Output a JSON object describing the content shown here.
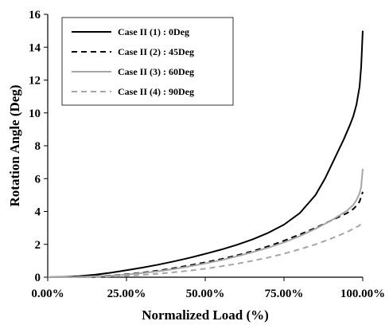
{
  "chart_data": {
    "type": "line",
    "xlabel": "Normalized Load (%)",
    "ylabel": "Rotation Angle (Deg)",
    "xlim": [
      0,
      100
    ],
    "ylim": [
      0,
      16
    ],
    "x_ticks": [
      0,
      25,
      50,
      75,
      100
    ],
    "x_tick_labels": [
      "0.00%",
      "25.00%",
      "50.00%",
      "75.00%",
      "100.00%"
    ],
    "y_ticks": [
      0,
      2,
      4,
      6,
      8,
      10,
      12,
      14,
      16
    ],
    "y_tick_labels": [
      "0",
      "2",
      "4",
      "6",
      "8",
      "10",
      "12",
      "14",
      "16"
    ],
    "grid": false,
    "legend_position": "top-left",
    "series": [
      {
        "name": "Case II (1) : 0Deg",
        "color": "#000000",
        "dash": "solid",
        "x": [
          0,
          5,
          10,
          15,
          20,
          25,
          30,
          35,
          40,
          45,
          50,
          55,
          60,
          65,
          70,
          75,
          80,
          85,
          88,
          90,
          92,
          94,
          96,
          97,
          98,
          99,
          99.5,
          100
        ],
        "y": [
          0,
          0.02,
          0.07,
          0.15,
          0.27,
          0.42,
          0.58,
          0.76,
          0.96,
          1.18,
          1.42,
          1.68,
          1.97,
          2.3,
          2.7,
          3.2,
          3.9,
          5.0,
          6.0,
          6.8,
          7.6,
          8.4,
          9.3,
          9.8,
          10.5,
          11.6,
          12.8,
          15.0
        ]
      },
      {
        "name": "Case II (2) : 45Deg",
        "color": "#000000",
        "dash": "dashed",
        "x": [
          0,
          10,
          20,
          25,
          30,
          35,
          40,
          45,
          50,
          55,
          60,
          65,
          70,
          75,
          80,
          85,
          90,
          95,
          97,
          98,
          99,
          100
        ],
        "y": [
          0,
          0.02,
          0.1,
          0.18,
          0.28,
          0.4,
          0.55,
          0.72,
          0.9,
          1.1,
          1.33,
          1.58,
          1.88,
          2.22,
          2.6,
          3.0,
          3.45,
          3.9,
          4.15,
          4.35,
          4.6,
          5.2
        ]
      },
      {
        "name": "Case II (3) : 60Deg",
        "color": "#a6a6a6",
        "dash": "solid",
        "x": [
          0,
          10,
          20,
          25,
          30,
          35,
          40,
          45,
          50,
          55,
          60,
          65,
          70,
          75,
          80,
          85,
          90,
          95,
          97,
          98,
          99,
          99.5,
          100
        ],
        "y": [
          0,
          0.02,
          0.09,
          0.16,
          0.25,
          0.36,
          0.5,
          0.66,
          0.84,
          1.04,
          1.27,
          1.52,
          1.8,
          2.12,
          2.5,
          2.95,
          3.45,
          4.05,
          4.4,
          4.7,
          5.1,
          5.5,
          6.6
        ]
      },
      {
        "name": "Case II (4) : 90Deg",
        "color": "#a6a6a6",
        "dash": "dashed",
        "x": [
          0,
          15,
          25,
          30,
          35,
          40,
          45,
          50,
          55,
          60,
          65,
          70,
          75,
          80,
          85,
          90,
          95,
          97,
          98,
          99,
          100
        ],
        "y": [
          0,
          0.02,
          0.08,
          0.14,
          0.21,
          0.3,
          0.4,
          0.52,
          0.66,
          0.82,
          1.0,
          1.2,
          1.43,
          1.7,
          2.0,
          2.35,
          2.75,
          2.95,
          3.05,
          3.15,
          3.4
        ]
      }
    ]
  }
}
